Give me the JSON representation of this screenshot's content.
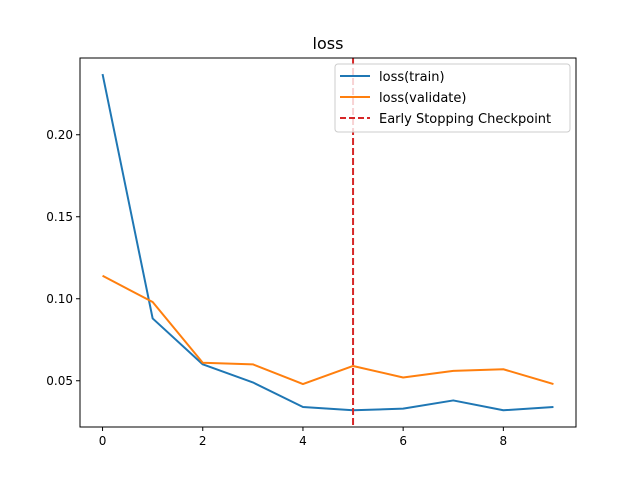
{
  "chart_data": {
    "type": "line",
    "title": "loss",
    "xlabel": "",
    "ylabel": "",
    "xlim": [
      -0.45,
      9.45
    ],
    "ylim": [
      0.0218,
      0.2468
    ],
    "x_ticks": [
      0,
      2,
      4,
      6,
      8
    ],
    "y_ticks": [
      0.05,
      0.1,
      0.15,
      0.2
    ],
    "y_tick_labels": [
      "0.05",
      "0.10",
      "0.15",
      "0.20"
    ],
    "grid": false,
    "legend_position": "top-right",
    "x": [
      0,
      1,
      2,
      3,
      4,
      5,
      6,
      7,
      8,
      9
    ],
    "series": [
      {
        "name": "loss(train)",
        "color": "#1f77b4",
        "values": [
          0.237,
          0.088,
          0.06,
          0.049,
          0.034,
          0.032,
          0.033,
          0.038,
          0.032,
          0.034
        ]
      },
      {
        "name": "loss(validate)",
        "color": "#ff7f0e",
        "values": [
          0.114,
          0.098,
          0.061,
          0.06,
          0.048,
          0.059,
          0.052,
          0.056,
          0.057,
          0.048
        ]
      }
    ],
    "vlines": [
      {
        "name": "Early Stopping Checkpoint",
        "x": 5,
        "color": "#d62728",
        "style": "dashed"
      }
    ]
  }
}
